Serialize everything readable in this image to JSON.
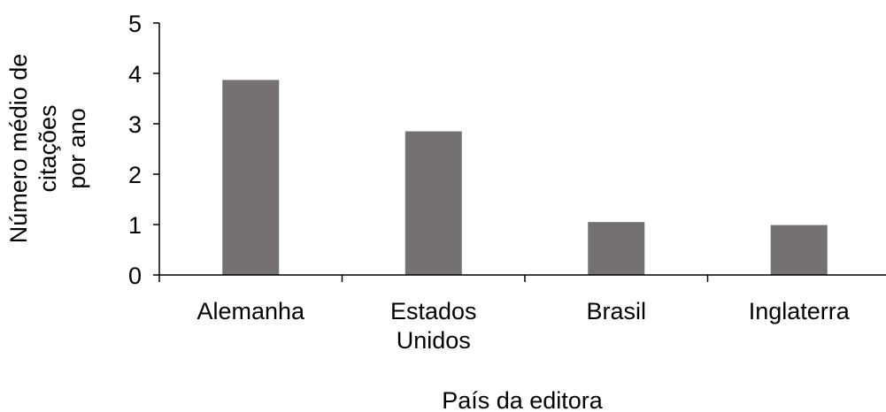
{
  "chart_data": {
    "type": "bar",
    "categories": [
      "Alemanha",
      "Estados Unidos",
      "Brasil",
      "Inglaterra"
    ],
    "category_label_lines": [
      [
        "Alemanha"
      ],
      [
        "Estados",
        "Unidos"
      ],
      [
        "Brasil"
      ],
      [
        "Inglaterra"
      ]
    ],
    "values": [
      3.87,
      2.85,
      1.05,
      0.99
    ],
    "xlabel": "País da editora",
    "ylabel": "Número médio de citações por ano",
    "ylabel_lines": [
      "Número médio de",
      "citações",
      "por ano"
    ],
    "ylim": [
      0,
      5
    ],
    "yticks": [
      "0",
      "1",
      "2",
      "3",
      "4",
      "5"
    ],
    "grid": false,
    "legend": "none",
    "bar_color": "#767171",
    "axis_color": "#000000"
  }
}
